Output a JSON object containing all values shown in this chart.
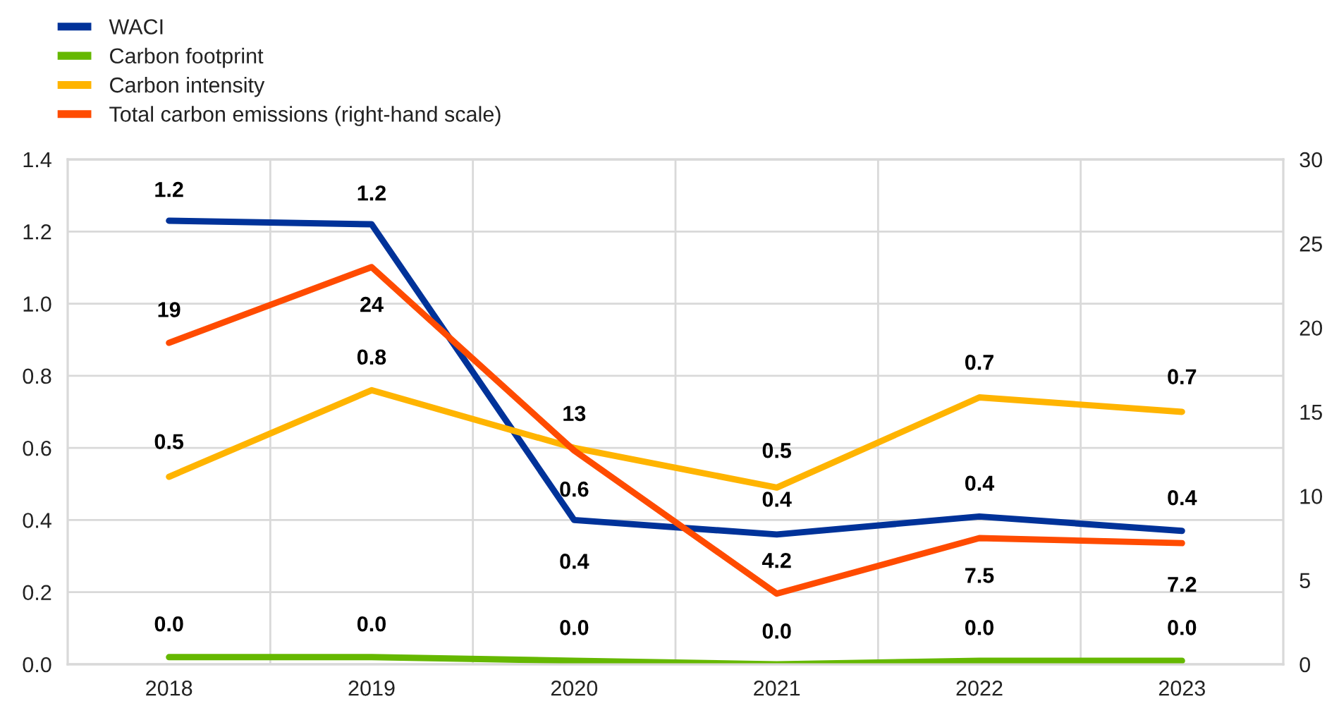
{
  "chart_data": {
    "type": "line",
    "categories": [
      "2018",
      "2019",
      "2020",
      "2021",
      "2022",
      "2023"
    ],
    "series": [
      {
        "name": "WACI",
        "color": "#003299",
        "values": [
          1.23,
          1.22,
          0.4,
          0.36,
          0.41,
          0.37
        ],
        "value_labels": [
          "1.2",
          "1.2",
          "0.4",
          "0.4",
          "0.4",
          "0.4"
        ]
      },
      {
        "name": "Carbon footprint",
        "color": "#65b800",
        "values": [
          0.02,
          0.02,
          0.01,
          0.0,
          0.01,
          0.01
        ],
        "value_labels": [
          "0.0",
          "0.0",
          "0.0",
          "0.0",
          "0.0",
          "0.0"
        ]
      },
      {
        "name": "Carbon intensity",
        "color": "#ffb400",
        "values": [
          0.52,
          0.76,
          0.6,
          0.49,
          0.74,
          0.7
        ],
        "value_labels": [
          "0.5",
          "0.8",
          "0.6",
          "0.5",
          "0.7",
          "0.7"
        ]
      },
      {
        "name": "Total carbon emissions (right-hand scale)",
        "color": "#ff4b00",
        "axis": "y2",
        "values": [
          19.1,
          23.6,
          12.7,
          4.2,
          7.5,
          7.2
        ],
        "value_labels": [
          "19",
          "24",
          "13",
          "4.2",
          "7.5",
          "7.2"
        ]
      }
    ],
    "ylim": [
      0,
      1.4
    ],
    "yticks": [
      {
        "value": 0,
        "label": "0.0"
      },
      0.2,
      0.4,
      0.6,
      0.8,
      {
        "value": 1,
        "label": "1.0"
      },
      1.2,
      1.4
    ],
    "y2lim": [
      0,
      30
    ],
    "y2ticks": [
      0,
      5,
      10,
      15,
      20,
      25,
      30
    ],
    "grid": true,
    "legend": "top left"
  }
}
